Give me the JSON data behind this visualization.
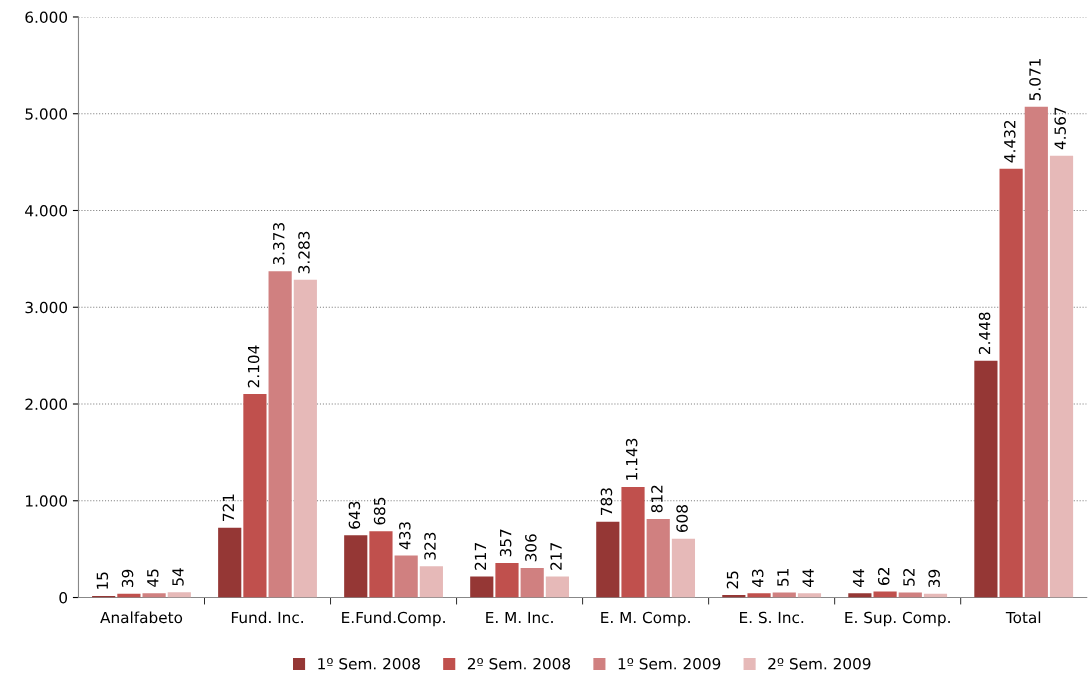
{
  "chart_data": {
    "type": "bar",
    "categories": [
      "Analfabeto",
      "Fund. Inc.",
      "E.Fund.Comp.",
      "E. M. Inc.",
      "E. M. Comp.",
      "E. S. Inc.",
      "E. Sup. Comp.",
      "Total"
    ],
    "series": [
      {
        "name": "1º Sem. 2008",
        "color": "#953735",
        "values": [
          15,
          721,
          643,
          217,
          783,
          25,
          44,
          2448
        ],
        "value_labels": [
          "15",
          "721",
          "643",
          "217",
          "783",
          "25",
          "44",
          "2.448"
        ]
      },
      {
        "name": "2º Sem. 2008",
        "color": "#c0504d",
        "values": [
          39,
          2104,
          685,
          357,
          1143,
          43,
          62,
          4432
        ],
        "value_labels": [
          "39",
          "2.104",
          "685",
          "357",
          "1.143",
          "43",
          "62",
          "4.432"
        ]
      },
      {
        "name": "1º Sem. 2009",
        "color": "#d08080",
        "values": [
          45,
          3373,
          433,
          306,
          812,
          51,
          52,
          5071
        ],
        "value_labels": [
          "45",
          "3.373",
          "433",
          "306",
          "812",
          "51",
          "52",
          "5.071"
        ]
      },
      {
        "name": "2º Sem. 2009",
        "color": "#e6b9b8",
        "values": [
          54,
          3283,
          323,
          217,
          608,
          44,
          39,
          4567
        ],
        "value_labels": [
          "54",
          "3.283",
          "323",
          "217",
          "608",
          "44",
          "39",
          "4.567"
        ]
      }
    ],
    "ylim": [
      0,
      6000
    ],
    "yticks": [
      0,
      {
        "value": 1000,
        "label": "1.000"
      },
      {
        "value": 2000,
        "label": "2.000"
      },
      {
        "value": 3000,
        "label": "3.000"
      },
      {
        "value": 4000,
        "label": "4.000"
      },
      {
        "value": 5000,
        "label": "5.000"
      },
      {
        "value": 6000,
        "label": "6.000"
      }
    ],
    "grid": "y",
    "legend": "bottom"
  }
}
